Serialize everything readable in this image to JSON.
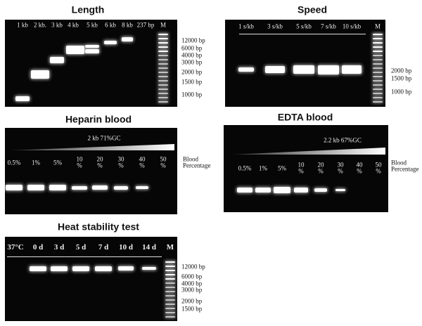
{
  "panels": [
    {
      "title": "Length",
      "lanes": [
        "1 kb",
        "2 kb.",
        "3 kb",
        "4 kb",
        "5 kb",
        "6 kb",
        "8 kb",
        "237 bp",
        "M"
      ],
      "markers": [
        "12000 bp",
        "6000 bp",
        "4000 bp",
        "3000 bp",
        "2000 bp",
        "1500 bp",
        "1000 bp"
      ]
    },
    {
      "title": "Speed",
      "lanes": [
        "1 s/kb",
        "3 s/kb",
        "5 s/kb",
        "7 s/kb",
        "10 s/kb",
        "M"
      ],
      "markers": [
        "2000 bp",
        "1500 bp",
        "1000 bp"
      ]
    },
    {
      "title": "Heparin blood",
      "note": "2 kb  71%GC",
      "lanes": [
        "0.5%",
        "1%",
        "5%",
        "10\n%",
        "20\n%",
        "30\n%",
        "40\n%",
        "50\n%"
      ],
      "side_label": "Blood\nPercentage"
    },
    {
      "title": "EDTA blood",
      "note": "2.2 kb 67%GC",
      "lanes": [
        "0.5%",
        "1%",
        "5%",
        "10\n%",
        "20\n%",
        "30\n%",
        "40\n%",
        "50\n%"
      ],
      "side_label": "Blood\nPercentage"
    },
    {
      "title": "Heat stability test",
      "lanes": [
        "37°C",
        "0 d",
        "3 d",
        "5 d",
        "7 d",
        "10 d",
        "14 d",
        "M"
      ],
      "markers": [
        "12000 bp",
        "6000 bp",
        "4000 bp",
        "3000 bp",
        "2000 bp",
        "1500 bp"
      ]
    }
  ]
}
